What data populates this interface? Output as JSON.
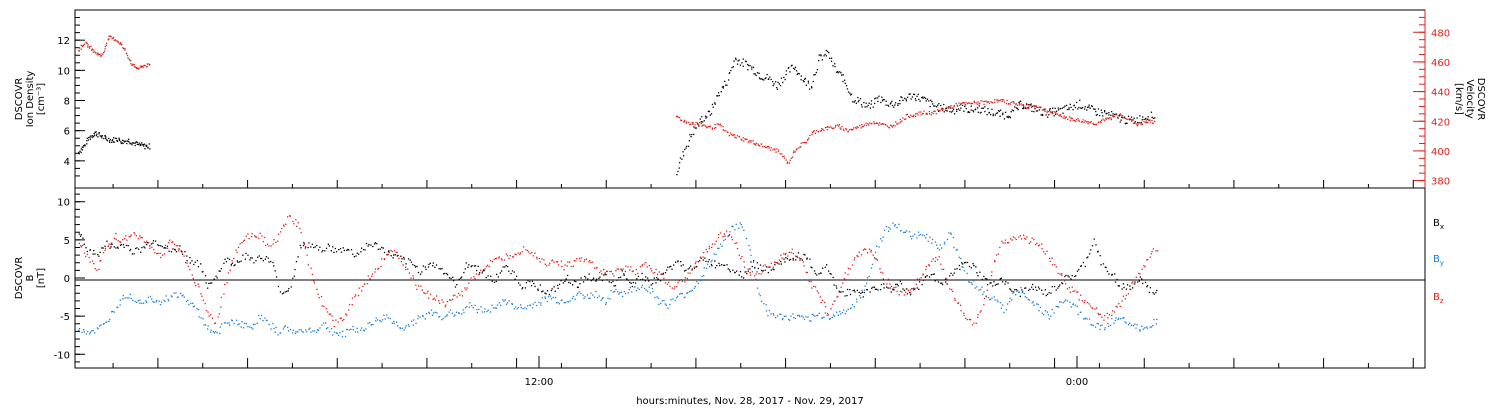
{
  "chart_data": [
    {
      "type": "scatter",
      "panel": "ion-density-velocity",
      "ylabel_left": [
        "DSCOVR",
        "Ion Density",
        "[cm⁻³]"
      ],
      "ylabel_right": [
        "DSCOVR",
        "Velocity",
        "[km/s]"
      ],
      "yticks_left": [
        "4",
        "6",
        "8",
        "10",
        "12"
      ],
      "yticks_right": [
        "380",
        "400",
        "420",
        "440",
        "460",
        "480"
      ],
      "ylim_left": [
        2.2,
        14
      ],
      "ylim_right": [
        375,
        495
      ],
      "grid": false,
      "colors": {
        "density": "#000000",
        "velocity": "#e0201a"
      },
      "series": [
        {
          "key": "density",
          "axis": "left",
          "x": [
            0.0,
            0.1,
            0.2,
            0.3,
            0.4,
            0.5,
            0.6,
            0.7,
            0.8,
            0.9,
            1.0,
            1.1,
            1.2,
            1.3,
            1.4,
            1.5,
            1.6,
            1.8,
            2.0,
            2.2,
            2.4,
            2.6,
            2.8,
            3.0,
            3.2,
            3.4,
            3.6,
            3.8,
            4.0,
            4.2,
            4.4,
            4.6,
            4.8,
            5.0,
            5.2,
            5.4,
            5.6,
            5.8,
            6.0,
            6.2,
            6.4,
            6.6,
            6.8,
            7.0,
            7.2,
            7.4,
            7.6,
            7.8,
            8.0,
            8.2,
            8.4,
            8.6,
            8.8,
            9.0,
            9.2,
            9.4,
            9.6,
            9.8,
            10.0,
            10.2,
            10.4,
            10.6,
            10.8,
            11.0,
            11.2,
            11.4,
            11.6,
            11.8,
            12.0,
            12.2,
            12.4
          ],
          "y": [
            4.6,
            5.0,
            5.6,
            5.9,
            5.7,
            5.5,
            5.4,
            5.5,
            5.3,
            5.4,
            5.2,
            5.1,
            5.0,
            null,
            3.3,
            4.8,
            6.0,
            6.8,
            7.2,
            8.5,
            9.3,
            10.8,
            10.5,
            10.2,
            9.7,
            9.5,
            9.0,
            9.8,
            10.3,
            9.5,
            9.0,
            10.8,
            11.2,
            10.0,
            9.4,
            8.2,
            7.9,
            7.6,
            8.2,
            7.9,
            7.8,
            8.1,
            8.4,
            8.2,
            7.9,
            7.6,
            7.5,
            7.4,
            7.6,
            7.4,
            7.5,
            7.3,
            7.2,
            7.1,
            7.2,
            7.8,
            7.6,
            7.4,
            7.2,
            7.3,
            7.4,
            7.6,
            7.8,
            7.5,
            7.3,
            7.2,
            7.0,
            6.8,
            6.7,
            6.8,
            7.0
          ]
        },
        {
          "key": "velocity",
          "axis": "right",
          "x": [
            0.0,
            0.1,
            0.2,
            0.3,
            0.4,
            0.5,
            0.6,
            0.7,
            0.8,
            0.9,
            1.0,
            1.1,
            1.2,
            1.3,
            1.4,
            1.5,
            1.6,
            1.8,
            2.0,
            2.2,
            2.4,
            2.6,
            2.8,
            3.0,
            3.2,
            3.4,
            3.6,
            3.8,
            4.0,
            4.2,
            4.4,
            4.6,
            4.8,
            5.0,
            5.2,
            5.4,
            5.6,
            5.8,
            6.0,
            6.2,
            6.4,
            6.6,
            6.8,
            7.0,
            7.2,
            7.4,
            7.6,
            7.8,
            8.0,
            8.2,
            8.4,
            8.6,
            8.8,
            9.0,
            9.2,
            9.4,
            9.6,
            9.8,
            10.0,
            10.2,
            10.4,
            10.6,
            10.8,
            11.0,
            11.2,
            11.4,
            11.6,
            11.8,
            12.0,
            12.2,
            12.4
          ],
          "y": [
            468,
            473,
            470,
            466,
            465,
            477,
            476,
            473,
            466,
            458,
            456,
            458,
            null,
            null,
            null,
            424,
            420,
            419,
            418,
            416,
            418,
            412,
            410,
            408,
            406,
            404,
            402,
            400,
            392,
            402,
            406,
            413,
            415,
            416,
            417,
            414,
            416,
            418,
            420,
            418,
            417,
            420,
            424,
            425,
            426,
            426,
            428,
            430,
            432,
            432,
            433,
            433,
            434,
            434,
            433,
            432,
            430,
            431,
            428,
            426,
            424,
            422,
            421,
            420,
            419,
            421,
            423,
            425,
            421,
            418,
            420
          ]
        }
      ],
      "data_x_mapping": "x values are relative sample indices within each continuous data gap; positioned by script"
    },
    {
      "type": "scatter",
      "panel": "magnetic-field",
      "ylabel": [
        "DSCOVR",
        "B",
        "[nT]"
      ],
      "yticks": [
        "10",
        "5",
        "0",
        "-5",
        "-10"
      ],
      "ylim": [
        -11.8,
        11.8
      ],
      "xticks": [
        "12:00",
        "0:00"
      ],
      "xlabel": "hours:minutes, Nov. 28, 2017 - Nov. 29, 2017",
      "legend": {
        "placement": "right",
        "entries": [
          {
            "label": "B",
            "sub": "x",
            "color": "#000000"
          },
          {
            "label": "B",
            "sub": "y",
            "color": "#1a7fd6"
          },
          {
            "label": "B",
            "sub": "z",
            "color": "#e0201a"
          }
        ]
      },
      "series": [
        {
          "key": "bx",
          "color": "#000000",
          "y": [
            6,
            4,
            3,
            4.5,
            4,
            4.5,
            3.5,
            4,
            5,
            4.5,
            3.5,
            4,
            2.5,
            2,
            -1,
            0.5,
            2.5,
            2,
            3,
            2.5,
            2.8,
            2,
            -2,
            -1,
            4,
            4.5,
            3.8,
            4.2,
            3.5,
            4,
            3,
            4.2,
            4.5,
            3.8,
            3,
            2.5,
            2,
            1,
            2,
            1.5,
            0.5,
            -1,
            2,
            1.5,
            0.8,
            -0.5,
            1.5,
            1,
            -1,
            -0.5,
            -1.2,
            -2,
            -1,
            0,
            -1,
            0.5,
            -0.5,
            0.3,
            -1,
            1,
            -0.8,
            0.5,
            -0.5,
            0,
            1.5,
            2,
            1,
            2,
            2.5,
            1.8,
            2,
            1,
            0.5,
            2,
            1.5,
            1,
            2.2,
            2.5,
            3,
            2.5,
            0.5,
            1.5,
            -1,
            -2,
            -1.5,
            -2,
            -1.2,
            -1,
            -1.5,
            -0.5,
            -2,
            -1,
            0.5,
            0,
            -0.5,
            1,
            2,
            1.5,
            0,
            -1,
            0,
            -1.5,
            -2,
            -1,
            -1.5,
            -2,
            -1,
            0,
            0.5,
            2,
            5,
            1.5,
            0.5,
            -1,
            -1.2,
            0,
            -1.5,
            -2
          ]
        },
        {
          "key": "by",
          "color": "#1a7fd6",
          "y": [
            -6.5,
            -7,
            -6.8,
            -6,
            -4,
            -2,
            -2.5,
            -3,
            -2.5,
            -3,
            -2.5,
            -2,
            -3,
            -4,
            -6,
            -7.5,
            -6,
            -5.5,
            -6,
            -6.5,
            -5,
            -6,
            -7,
            -6.5,
            -7.2,
            -6.5,
            -7,
            -6,
            -7,
            -7.5,
            -6.5,
            -6.8,
            -6,
            -5.5,
            -5,
            -6,
            -6.5,
            -5.5,
            -5,
            -4.5,
            -5,
            -4.5,
            -4.5,
            -3.5,
            -4,
            -4.2,
            -3.5,
            -3,
            -3.5,
            -4,
            -3.5,
            -3,
            -2.5,
            -3,
            -2.8,
            -2,
            -2.5,
            -2,
            -3,
            -1.5,
            -2,
            -1.5,
            -1,
            -1.5,
            -3,
            -3.5,
            -2.5,
            -2,
            -1,
            1,
            3,
            5,
            6.5,
            7,
            4,
            -2,
            -4.5,
            -5,
            -5.2,
            -5,
            -5.5,
            -5,
            -4.8,
            -5,
            -4.5,
            -4,
            -2.5,
            0,
            4,
            6.5,
            7,
            6,
            5.5,
            6,
            5,
            4,
            6,
            3,
            0,
            -1,
            -2,
            -3,
            -4,
            -2,
            -1.5,
            -3,
            -4,
            -5,
            -3.5,
            -3,
            -4,
            -5.5,
            -6,
            -6.5,
            -5.5,
            -5,
            -6,
            -6.5,
            -6,
            -5.5
          ]
        },
        {
          "key": "bz",
          "color": "#e0201a",
          "y": [
            5,
            3,
            1,
            4,
            5.5,
            5,
            6,
            5,
            4,
            3,
            5,
            4,
            1.5,
            -1,
            -4,
            -6,
            -1,
            3,
            5,
            6,
            5.5,
            4,
            6,
            8,
            7,
            3,
            -1.5,
            -4,
            -6,
            -5,
            -3,
            -1,
            0.5,
            2,
            3.5,
            3,
            1,
            -1,
            -2,
            -2.5,
            -3.5,
            -2.5,
            -2,
            0,
            1,
            2,
            2.5,
            3,
            3.5,
            4,
            3,
            2,
            2.5,
            1.5,
            2,
            2.5,
            2,
            1,
            0.5,
            1,
            1.5,
            0.8,
            2,
            1,
            0,
            -1,
            -0.5,
            1,
            3,
            4,
            5.5,
            6,
            4,
            1,
            0.5,
            1.5,
            2,
            3,
            3.5,
            2.5,
            -0.5,
            -2.5,
            -4.5,
            -2,
            1,
            3,
            4,
            3,
            0,
            -1,
            -2,
            -1.5,
            0,
            2,
            3,
            -1,
            -3,
            -5,
            -6,
            -3,
            2,
            5,
            5.2,
            5.5,
            5,
            4.5,
            3,
            1,
            -1,
            -2,
            -3,
            -4,
            -5,
            -4.5,
            -3,
            -1,
            0.5,
            3,
            4
          ]
        }
      ]
    }
  ]
}
